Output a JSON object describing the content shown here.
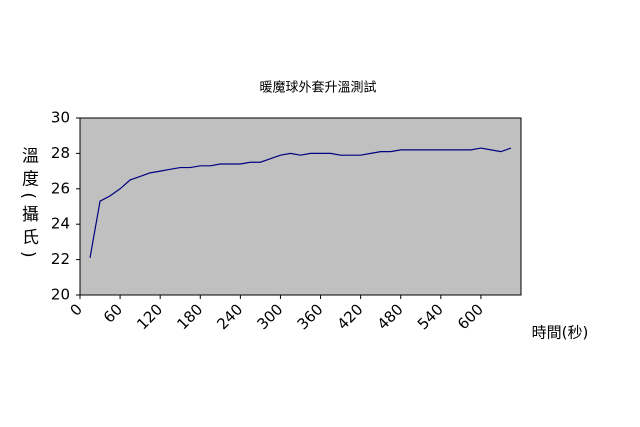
{
  "chart_data": {
    "type": "line",
    "title": "暖魔球外套升溫測試",
    "x_label": "時間(秒)",
    "y_label": "溫度(攝氏)",
    "x": [
      15,
      30,
      45,
      60,
      75,
      90,
      105,
      120,
      135,
      150,
      165,
      180,
      195,
      210,
      225,
      240,
      255,
      270,
      285,
      300,
      315,
      330,
      345,
      360,
      375,
      390,
      405,
      420,
      435,
      450,
      465,
      480,
      495,
      510,
      525,
      540,
      555,
      570,
      585,
      600,
      615,
      630,
      645
    ],
    "series": [
      {
        "name": "溫度",
        "color": "#000080",
        "values": [
          22.1,
          25.3,
          25.6,
          26.0,
          26.5,
          26.7,
          26.9,
          27.0,
          27.1,
          27.2,
          27.2,
          27.3,
          27.3,
          27.4,
          27.4,
          27.4,
          27.5,
          27.5,
          27.7,
          27.9,
          28.0,
          27.9,
          28.0,
          28.0,
          28.0,
          27.9,
          27.9,
          27.9,
          28.0,
          28.1,
          28.1,
          28.2,
          28.2,
          28.2,
          28.2,
          28.2,
          28.2,
          28.2,
          28.2,
          28.3,
          28.2,
          28.1,
          28.3
        ]
      }
    ],
    "xlim": [
      0,
      660
    ],
    "xticks": [
      0,
      60,
      120,
      180,
      240,
      300,
      360,
      420,
      480,
      540,
      600
    ],
    "ylim": [
      20,
      30
    ],
    "yticks": [
      20,
      22,
      24,
      26,
      28,
      30
    ],
    "plot_background": "#c0c0c0",
    "grid": false
  }
}
